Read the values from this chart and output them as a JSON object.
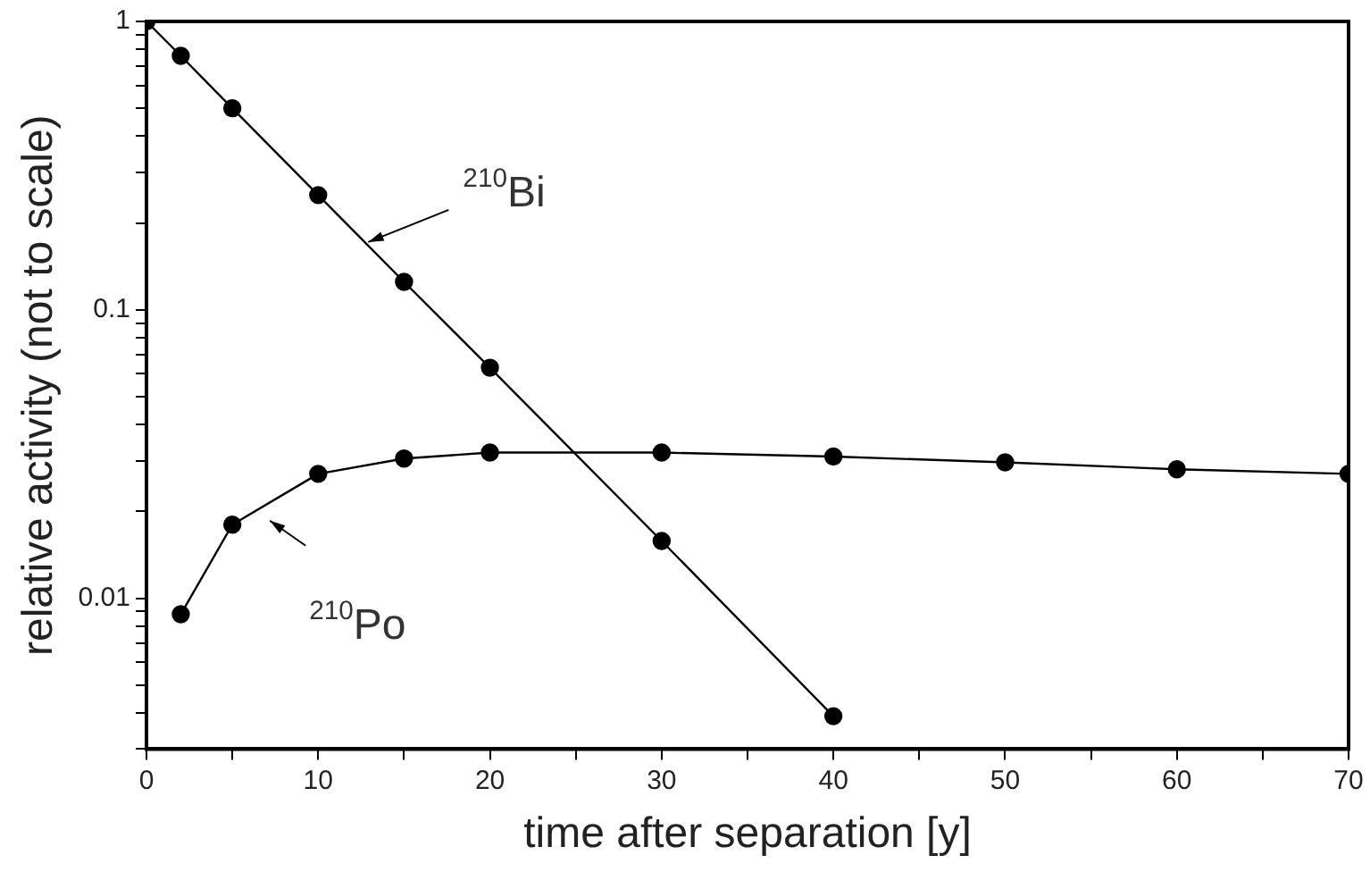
{
  "chart_data": {
    "type": "line",
    "xlabel": "time after separation [y]",
    "ylabel": "relative activity (not to scale)",
    "log": "y",
    "grid": false,
    "legend": false,
    "marker": "circle",
    "line_style": "solid",
    "xlim": [
      0,
      70
    ],
    "xticks": [
      0,
      {
        "value": 5,
        "label": null
      },
      10,
      {
        "value": 15,
        "label": null
      },
      20,
      {
        "value": 25,
        "label": null
      },
      30,
      {
        "value": 35,
        "label": null
      },
      40,
      {
        "value": 45,
        "label": null
      },
      50,
      {
        "value": 55,
        "label": null
      },
      60,
      {
        "value": 65,
        "label": null
      },
      70
    ],
    "ylim": [
      0.003,
      1
    ],
    "yticks": [
      {
        "value": 0.003,
        "label": null
      },
      {
        "value": 0.004,
        "label": null
      },
      {
        "value": 0.005,
        "label": null
      },
      {
        "value": 0.006,
        "label": null
      },
      {
        "value": 0.007,
        "label": null
      },
      {
        "value": 0.008,
        "label": null
      },
      {
        "value": 0.009,
        "label": null
      },
      0.01,
      {
        "value": 0.02,
        "label": null
      },
      {
        "value": 0.03,
        "label": null
      },
      {
        "value": 0.04,
        "label": null
      },
      {
        "value": 0.05,
        "label": null
      },
      {
        "value": 0.06,
        "label": null
      },
      {
        "value": 0.07,
        "label": null
      },
      {
        "value": 0.08,
        "label": null
      },
      {
        "value": 0.09,
        "label": null
      },
      0.1,
      {
        "value": 0.2,
        "label": null
      },
      {
        "value": 0.3,
        "label": null
      },
      {
        "value": 0.4,
        "label": null
      },
      {
        "value": 0.5,
        "label": null
      },
      {
        "value": 0.6,
        "label": null
      },
      {
        "value": 0.7,
        "label": null
      },
      {
        "value": 0.8,
        "label": null
      },
      {
        "value": 0.9,
        "label": null
      },
      1
    ],
    "series": [
      {
        "name": "$^{210}$Bi",
        "color": "#000000",
        "x": [
          0,
          2,
          5,
          10,
          15,
          20,
          30,
          40
        ],
        "values": [
          1,
          0.76,
          0.5,
          0.25,
          0.125,
          0.063,
          0.0158,
          0.0039
        ]
      },
      {
        "name": "$^{210}$Po",
        "color": "#000000",
        "x": [
          2,
          5,
          10,
          15,
          20,
          30,
          40,
          50,
          60,
          70
        ],
        "values": [
          0.0088,
          0.018,
          0.027,
          0.0305,
          0.032,
          0.032,
          0.031,
          0.0296,
          0.028,
          0.027
        ]
      }
    ]
  }
}
